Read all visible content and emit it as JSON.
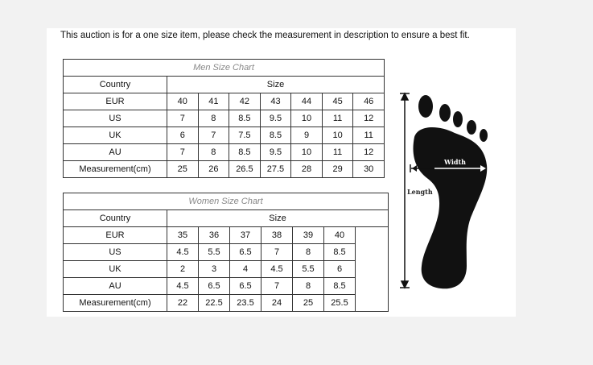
{
  "notice": "This auction is for a one size item, please check the measurement in description to ensure a best fit.",
  "men": {
    "title": "Men Size Chart",
    "country_header": "Country",
    "size_header": "Size",
    "rows": [
      {
        "label": "EUR",
        "values": [
          "40",
          "41",
          "42",
          "43",
          "44",
          "45",
          "46"
        ]
      },
      {
        "label": "US",
        "values": [
          "7",
          "8",
          "8.5",
          "9.5",
          "10",
          "11",
          "12"
        ]
      },
      {
        "label": "UK",
        "values": [
          "6",
          "7",
          "7.5",
          "8.5",
          "9",
          "10",
          "11"
        ]
      },
      {
        "label": "AU",
        "values": [
          "7",
          "8",
          "8.5",
          "9.5",
          "10",
          "11",
          "12"
        ]
      },
      {
        "label": "Measurement(cm)",
        "values": [
          "25",
          "26",
          "26.5",
          "27.5",
          "28",
          "29",
          "30"
        ]
      }
    ]
  },
  "women": {
    "title": "Women Size Chart",
    "country_header": "Country",
    "size_header": "Size",
    "rows": [
      {
        "label": "EUR",
        "values": [
          "35",
          "36",
          "37",
          "38",
          "39",
          "40"
        ]
      },
      {
        "label": "US",
        "values": [
          "4.5",
          "5.5",
          "6.5",
          "7",
          "8",
          "8.5"
        ]
      },
      {
        "label": "UK",
        "values": [
          "2",
          "3",
          "4",
          "4.5",
          "5.5",
          "6"
        ]
      },
      {
        "label": "AU",
        "values": [
          "4.5",
          "6.5",
          "6.5",
          "7",
          "8",
          "8.5"
        ]
      },
      {
        "label": "Measurement(cm)",
        "values": [
          "22",
          "22.5",
          "23.5",
          "24",
          "25",
          "25.5"
        ]
      }
    ]
  },
  "foot": {
    "width_label": "Width",
    "length_label": "Length"
  }
}
